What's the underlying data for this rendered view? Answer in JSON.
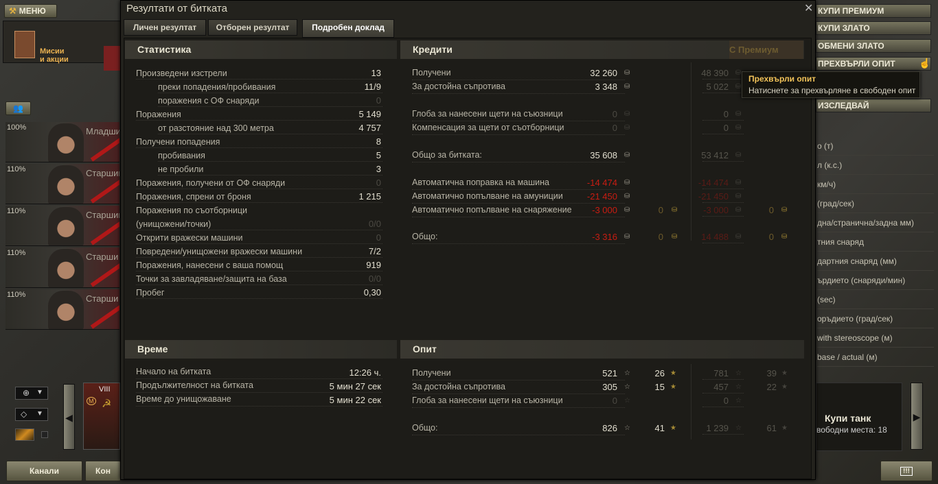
{
  "menu": {
    "label": "МЕНЮ",
    "missions": "Мисии\nи акции"
  },
  "crew": [
    {
      "pct": "100%",
      "name": "Младши"
    },
    {
      "pct": "110%",
      "name": "Старшин"
    },
    {
      "pct": "110%",
      "name": "Старшин"
    },
    {
      "pct": "110%",
      "name": "Старши"
    },
    {
      "pct": "110%",
      "name": "Старши"
    }
  ],
  "tank": {
    "tier": "VIII",
    "badge": "М"
  },
  "bottom": {
    "channels": "Канали",
    "contacts": "Кон"
  },
  "right_buttons": [
    "КУПИ ПРЕМИУМ",
    "КУПИ ЗЛАТО",
    "ОБМЕНИ ЗЛАТО",
    "ПРЕХВЪРЛИ ОПИТ",
    "ИЗСЛЕДВАЙ"
  ],
  "specs": [
    "о (т)",
    "л (к.с.)",
    "км/ч)",
    "(град/сек)",
    "дна/странична/задна мм)",
    "тния снаряд",
    "дартния снаряд (мм)",
    "ърдието (снаряди/мин)",
    "(sec)",
    "оръдието (град/сек)",
    "with stereoscope (м)",
    "base / actual (м)"
  ],
  "buy_tank": {
    "title": "Купи танк",
    "slots": "вободни места: 18"
  },
  "tooltip": {
    "title": "Прехвърли опит",
    "text": "Натиснете за прехвърляне в свободен опит"
  },
  "dialog": {
    "title": "Резултати от битката",
    "tabs": [
      {
        "label": "Личен резултат",
        "active": false
      },
      {
        "label": "Отборен резултат",
        "active": false
      },
      {
        "label": "Подробен доклад",
        "active": true
      }
    ],
    "stats": {
      "header": "Статистика",
      "rows": [
        {
          "label": "Произведени изстрели",
          "value": "13"
        },
        {
          "label": "преки попадения/пробивания",
          "value": "11/9",
          "indent": true
        },
        {
          "label": "поражения с ОФ снаряди",
          "value": "0",
          "indent": true,
          "dim": true
        },
        {
          "label": "Поражения",
          "value": "5 149"
        },
        {
          "label": "от разстояние над 300 метра",
          "value": "4 757",
          "indent": true
        },
        {
          "label": "Получени попадения",
          "value": "8"
        },
        {
          "label": "пробивания",
          "value": "5",
          "indent": true
        },
        {
          "label": "не пробили",
          "value": "3",
          "indent": true
        },
        {
          "label": "Поражения, получени от ОФ снаряди",
          "value": "0",
          "dim": true
        },
        {
          "label": "Поражения, спрени от броня",
          "value": "1 215"
        },
        {
          "label": "Поражения по съотборници\n(унищожени/точки)",
          "value": "0/0",
          "dim": true,
          "double": true
        },
        {
          "label": "Открити вражески машини",
          "value": "0",
          "dim": true
        },
        {
          "label": "Повредени/унищожени вражески машини",
          "value": "7/2"
        },
        {
          "label": "Поражения, нанесени с ваша помощ",
          "value": "919"
        },
        {
          "label": "Точки за завладяване/защита на база",
          "value": "0/0",
          "dim": true
        },
        {
          "label": "Пробег",
          "value": "0,30"
        }
      ]
    },
    "credits": {
      "header": "Кредити",
      "premium_header": "С Премиум",
      "rows": [
        {
          "label": "Получени",
          "value": "32 260",
          "prem": "48 390"
        },
        {
          "label": "За достойна съпротива",
          "value": "3 348",
          "prem": "5 022"
        },
        {
          "label": "Глоба за нанесени щети на съюзници",
          "value": "0",
          "prem": "0",
          "dim": true
        },
        {
          "label": "Компенсация за щети от съотборници",
          "value": "0",
          "prem": "0",
          "dim": true
        },
        {
          "label": "Общо за битката:",
          "value": "35 608",
          "prem": "53 412"
        },
        {
          "label": "Автоматична поправка на машина",
          "value": "-14 474",
          "prem": "-14 474",
          "red": true
        },
        {
          "label": "Автоматично попълване на амуниции",
          "value": "-21 450",
          "prem": "-21 450",
          "red": true
        },
        {
          "label": "Автоматично попълване на снаряжение",
          "value": "-3 000",
          "gold": "0",
          "prem": "-3 000",
          "prem_gold": "0",
          "red": true
        },
        {
          "label": "Общо:",
          "value": "-3 316",
          "gold": "0",
          "prem": "14 488",
          "prem_gold": "0",
          "red": true
        }
      ]
    },
    "time": {
      "header": "Време",
      "rows": [
        {
          "label": "Начало на битката",
          "value": "12:26 ч."
        },
        {
          "label": "Продължителност на битката",
          "value": "5 мин 27 сек"
        },
        {
          "label": "Време до унищожаване",
          "value": "5 мин 22 сек"
        }
      ]
    },
    "xp": {
      "header": "Опит",
      "rows": [
        {
          "label": "Получени",
          "value": "521",
          "free": "26",
          "prem": "781",
          "prem_free": "39"
        },
        {
          "label": "За достойна съпротива",
          "value": "305",
          "free": "15",
          "prem": "457",
          "prem_free": "22"
        },
        {
          "label": "Глоба за нанесени щети на съюзници",
          "value": "0",
          "prem": "0",
          "dim": true
        },
        {
          "label": "Общо:",
          "value": "826",
          "free": "41",
          "prem": "1 239",
          "prem_free": "61"
        }
      ]
    }
  },
  "colors": {
    "negative": "#c81c12",
    "tooltip_title": "#f2c359",
    "gold": "#a58a35"
  }
}
